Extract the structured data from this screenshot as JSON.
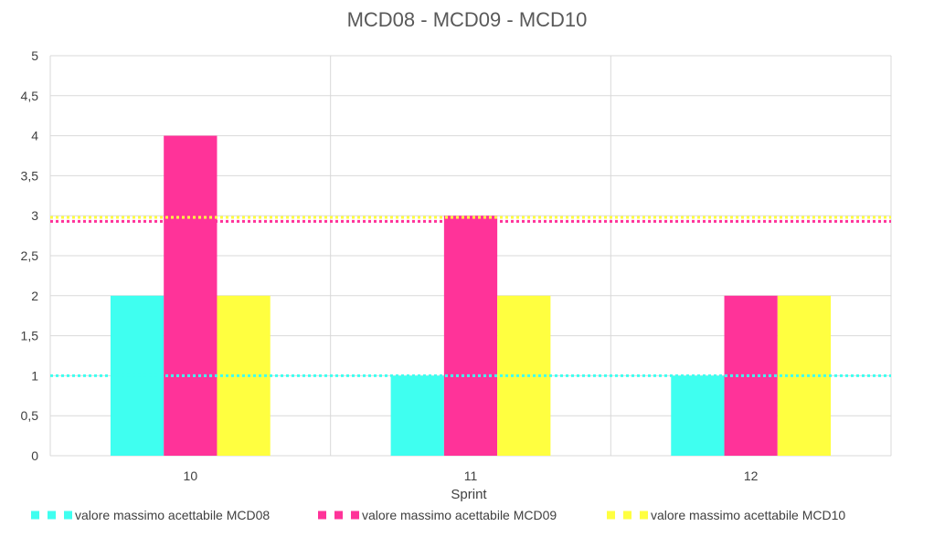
{
  "chart_data": {
    "type": "bar",
    "title": "MCD08 - MCD09 - MCD10",
    "xlabel": "Sprint",
    "ylabel": "",
    "categories": [
      "10",
      "11",
      "12"
    ],
    "ylim": [
      0,
      5
    ],
    "yticks": [
      "0",
      "0,5",
      "1",
      "1,5",
      "2",
      "2,5",
      "3",
      "3,5",
      "4",
      "4,5",
      "5"
    ],
    "series": [
      {
        "values": [
          2,
          1,
          1
        ],
        "color": "#3ffff0"
      },
      {
        "values": [
          4,
          3,
          2
        ],
        "color": "#ff3399"
      },
      {
        "values": [
          2,
          2,
          2
        ],
        "color": "#ffff40"
      }
    ],
    "reference_lines": [
      {
        "name": "valore massimo acettabile MCD08",
        "value": 1,
        "color": "#3ffff0",
        "style": "dotted"
      },
      {
        "name": "valore massimo acettabile MCD09",
        "value": 2.93,
        "color": "#ff3399",
        "style": "dotted"
      },
      {
        "name": "valore massimo acettabile MCD10",
        "value": 2.98,
        "color": "#ffff40",
        "style": "dotted"
      }
    ],
    "grid": true,
    "legend_position": "bottom"
  }
}
